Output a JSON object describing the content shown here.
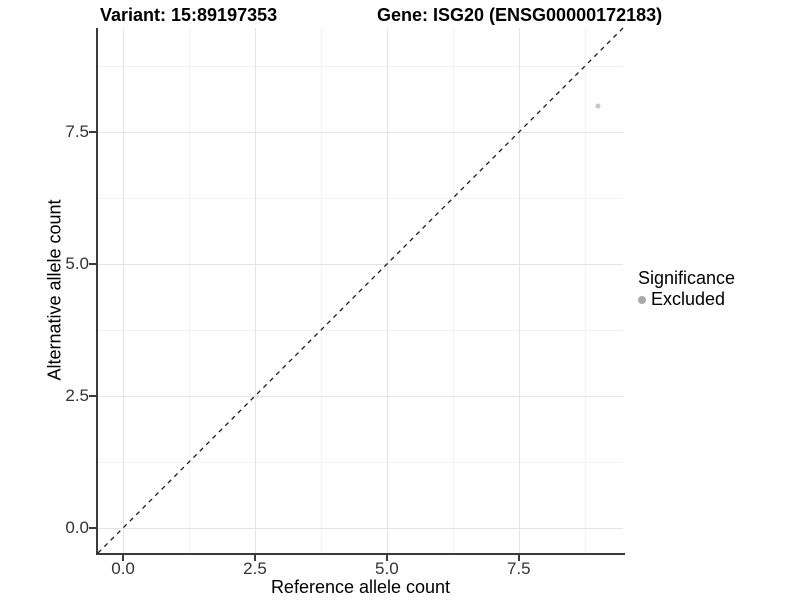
{
  "figure": {
    "title_left": "Variant: 15:89197353",
    "title_right": "Gene: ISG20 (ENSG00000172183)"
  },
  "chart_data": {
    "type": "scatter",
    "title": "Variant: 15:89197353 — Gene: ISG20 (ENSG00000172183)",
    "xlabel": "Reference allele count",
    "ylabel": "Alternative allele count",
    "xlim": [
      -0.475,
      9.475
    ],
    "ylim": [
      -0.475,
      9.475
    ],
    "x_ticks": [
      0.0,
      2.5,
      5.0,
      7.5
    ],
    "y_ticks": [
      0.0,
      2.5,
      5.0,
      7.5
    ],
    "x_tick_labels": [
      "0.0",
      "2.5",
      "5.0",
      "7.5"
    ],
    "y_tick_labels": [
      "0.0",
      "2.5",
      "5.0",
      "7.5"
    ],
    "grid": "major+minor",
    "series": [
      {
        "name": "Excluded",
        "color": "#c7c7c7",
        "point_radius": 2.5,
        "points": [
          {
            "x": 9,
            "y": 8
          }
        ]
      }
    ],
    "reference_line": {
      "kind": "identity y=x",
      "style": "dashed",
      "color": "#1a1a1a"
    },
    "legend": {
      "title": "Significance",
      "position": "right",
      "entries": [
        {
          "label": "Excluded",
          "key_color": "#a9a9a9"
        }
      ]
    }
  },
  "colors": {
    "background": "#ffffff",
    "grid_major": "#e4e4e4",
    "grid_minor": "#f2f2f2",
    "axis_line": "#3a3a3a",
    "tick_text": "#333333",
    "title_text": "#000000"
  }
}
